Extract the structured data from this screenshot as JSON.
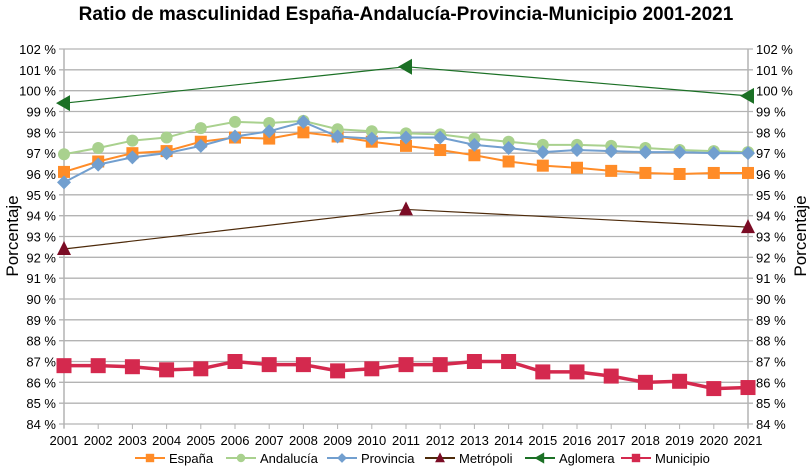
{
  "chart_data": {
    "type": "line",
    "title": "Ratio de masculinidad España-Andalucía-Provincia-Municipio 2001-2021",
    "xlabel": "",
    "ylabel": "Porcentaje",
    "ylabel_secondary": "Porcentaje",
    "ylim": [
      84,
      102
    ],
    "ytick_step": 1,
    "ytick_suffix": " %",
    "grid": true,
    "legend_position": "bottom",
    "x": [
      "2001",
      "2002",
      "2003",
      "2004",
      "2005",
      "2006",
      "2007",
      "2008",
      "2009",
      "2010",
      "2011",
      "2012",
      "2013",
      "2014",
      "2015",
      "2016",
      "2017",
      "2018",
      "2019",
      "2020",
      "2021"
    ],
    "series": [
      {
        "name": "España",
        "color": "#ff8c28",
        "marker": "square",
        "values": [
          96.1,
          96.6,
          97.0,
          97.1,
          97.55,
          97.75,
          97.7,
          98.0,
          97.8,
          97.55,
          97.35,
          97.15,
          96.9,
          96.6,
          96.4,
          96.3,
          96.15,
          96.05,
          96.0,
          96.05,
          96.05
        ]
      },
      {
        "name": "Andalucía",
        "color": "#a9d18e",
        "marker": "circle",
        "values": [
          96.95,
          97.25,
          97.6,
          97.75,
          98.2,
          98.5,
          98.45,
          98.55,
          98.15,
          98.05,
          97.95,
          97.9,
          97.7,
          97.55,
          97.4,
          97.4,
          97.35,
          97.25,
          97.15,
          97.1,
          97.05
        ]
      },
      {
        "name": "Provincia",
        "color": "#729fcf",
        "marker": "diamond",
        "values": [
          95.6,
          96.45,
          96.8,
          97.0,
          97.35,
          97.8,
          98.05,
          98.5,
          97.8,
          97.7,
          97.75,
          97.75,
          97.4,
          97.25,
          97.05,
          97.15,
          97.1,
          97.05,
          97.05,
          97.0,
          97.0
        ]
      },
      {
        "name": "Metrópoli",
        "color": "#7b0c25",
        "line_color": "#4d2a0a",
        "marker": "triangle-up",
        "values": [
          92.4,
          null,
          null,
          null,
          null,
          null,
          null,
          null,
          null,
          null,
          94.3,
          null,
          null,
          null,
          null,
          null,
          null,
          null,
          null,
          null,
          93.45
        ]
      },
      {
        "name": "Aglomera",
        "color": "#1b7025",
        "marker": "triangle-left",
        "values": [
          99.4,
          null,
          null,
          null,
          null,
          null,
          null,
          null,
          null,
          null,
          101.15,
          null,
          null,
          null,
          null,
          null,
          null,
          null,
          null,
          null,
          99.75
        ]
      },
      {
        "name": "Municipio",
        "color": "#d4294e",
        "marker": "square-large",
        "values": [
          86.8,
          86.8,
          86.75,
          86.6,
          86.65,
          87.0,
          86.85,
          86.85,
          86.55,
          86.65,
          86.85,
          86.85,
          87.0,
          87.0,
          86.5,
          86.5,
          86.3,
          86.0,
          86.05,
          85.7,
          85.75
        ]
      }
    ]
  }
}
